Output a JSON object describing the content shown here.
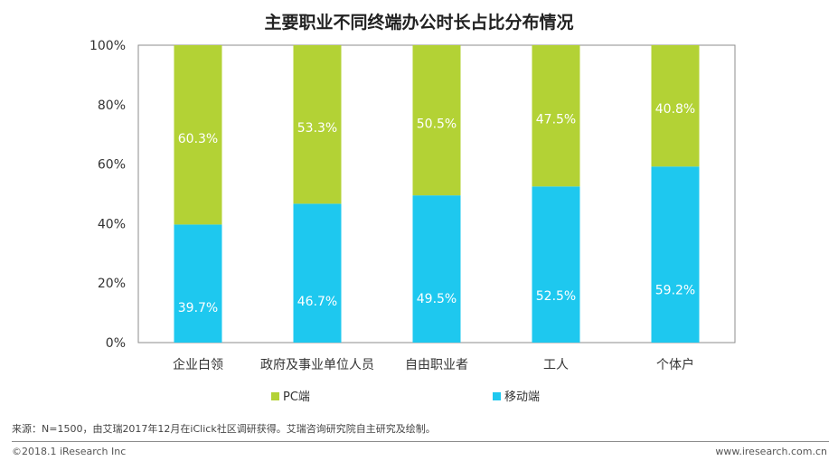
{
  "chart_data": {
    "type": "bar",
    "stacked": true,
    "title": "主要职业不同终端办公时长占比分布情况",
    "categories": [
      "企业白领",
      "政府及事业单位人员",
      "自由职业者",
      "工人",
      "个体户"
    ],
    "series": [
      {
        "name": "移动端",
        "color": "#1ec8ef",
        "values": [
          39.7,
          46.7,
          49.5,
          52.5,
          59.2
        ],
        "labels": [
          "39.7%",
          "46.7%",
          "49.5%",
          "52.5%",
          "59.2%"
        ]
      },
      {
        "name": "PC端",
        "color": "#b3d235",
        "values": [
          60.3,
          53.3,
          50.5,
          47.5,
          40.8
        ],
        "labels": [
          "60.3%",
          "53.3%",
          "50.5%",
          "47.5%",
          "40.8%"
        ]
      }
    ],
    "y_ticks": [
      "0%",
      "20%",
      "40%",
      "60%",
      "80%",
      "100%"
    ],
    "ylim": [
      0,
      100
    ],
    "legend": [
      "PC端",
      "移动端"
    ],
    "legend_position": "bottom",
    "grid": false
  },
  "footer": {
    "source": "来源：N=1500，由艾瑞2017年12月在iClick社区调研获得。艾瑞咨询研究院自主研究及绘制。",
    "copyright": "©2018.1  iResearch  Inc",
    "website": "www.iresearch.com.cn"
  }
}
